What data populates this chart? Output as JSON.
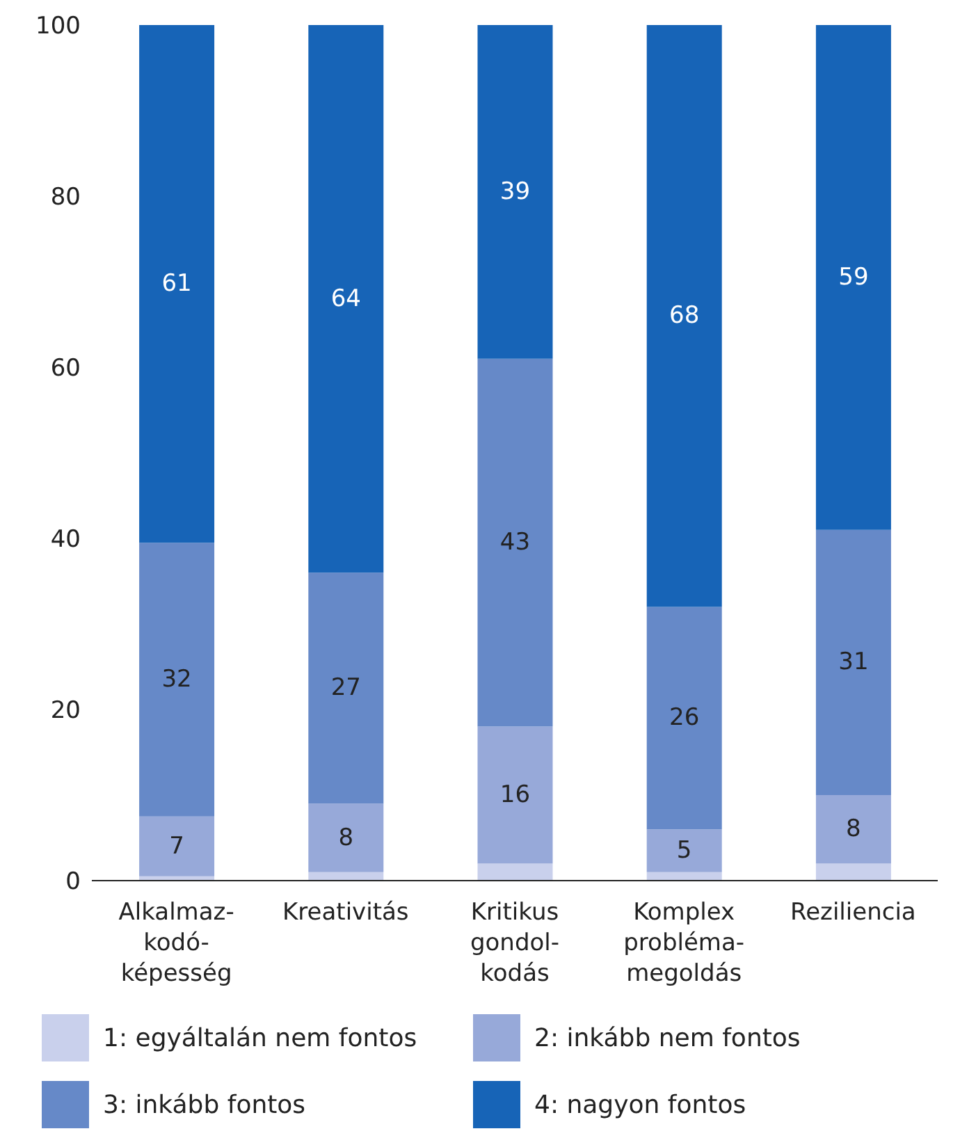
{
  "chart_data": {
    "type": "bar",
    "stacked": true,
    "categories": [
      "Alkalmaz-\nkodó-\nképesség",
      "Kreativitás",
      "Kritikus\ngondol-\nkodás",
      "Komplex\nprobléma-\nmegoldás",
      "Reziliencia"
    ],
    "series": [
      {
        "name": "1: egyáltalán nem fontos",
        "color": "#c9d0ec",
        "values": [
          0.5,
          1,
          2,
          1,
          2
        ]
      },
      {
        "name": "2: inkább nem fontos",
        "color": "#97a9d9",
        "values": [
          7,
          8,
          16,
          5,
          8
        ],
        "value_labels": [
          "7",
          "8",
          "16",
          "5",
          "8"
        ]
      },
      {
        "name": "3: inkább fontos",
        "color": "#6689c8",
        "values": [
          32,
          27,
          43,
          26,
          31
        ],
        "value_labels": [
          "32",
          "27",
          "43",
          "26",
          "31"
        ]
      },
      {
        "name": "4: nagyon fontos",
        "color": "#1764b7",
        "values": [
          60.5,
          64,
          39,
          68,
          59
        ],
        "value_labels": [
          "61",
          "64",
          "39",
          "68",
          "59"
        ]
      }
    ],
    "ylim": [
      0,
      100
    ],
    "yticks": [
      0,
      20,
      40,
      60,
      80,
      100
    ],
    "grid": false,
    "legend": "bottom"
  }
}
